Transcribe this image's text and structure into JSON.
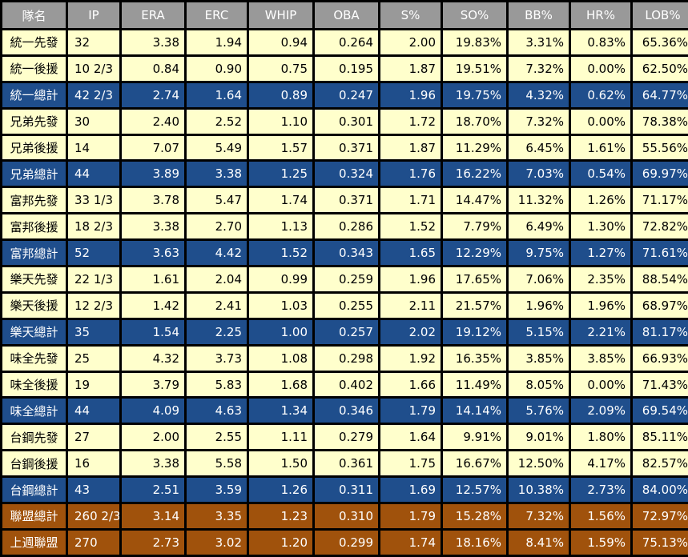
{
  "headers": [
    "隊名",
    "IP",
    "ERA",
    "ERC",
    "WHIP",
    "OBA",
    "S%",
    "SO%",
    "BB%",
    "HR%",
    "LOB%"
  ],
  "rows": [
    {
      "type": "plain",
      "cells": [
        "統一先發",
        "32",
        "3.38",
        "1.94",
        "0.94",
        "0.264",
        "2.00",
        "19.83%",
        "3.31%",
        "0.83%",
        "65.36%"
      ]
    },
    {
      "type": "plain",
      "cells": [
        "統一後援",
        "10 2/3",
        "0.84",
        "0.90",
        "0.75",
        "0.195",
        "1.87",
        "19.51%",
        "7.32%",
        "0.00%",
        "62.50%"
      ]
    },
    {
      "type": "total",
      "cells": [
        "統一總計",
        "42 2/3",
        "2.74",
        "1.64",
        "0.89",
        "0.247",
        "1.96",
        "19.75%",
        "4.32%",
        "0.62%",
        "64.77%"
      ]
    },
    {
      "type": "plain",
      "cells": [
        "兄弟先發",
        "30",
        "2.40",
        "2.52",
        "1.10",
        "0.301",
        "1.72",
        "18.70%",
        "7.32%",
        "0.00%",
        "78.38%"
      ]
    },
    {
      "type": "plain",
      "cells": [
        "兄弟後援",
        "14",
        "7.07",
        "5.49",
        "1.57",
        "0.371",
        "1.87",
        "11.29%",
        "6.45%",
        "1.61%",
        "55.56%"
      ]
    },
    {
      "type": "total",
      "cells": [
        "兄弟總計",
        "44",
        "3.89",
        "3.38",
        "1.25",
        "0.324",
        "1.76",
        "16.22%",
        "7.03%",
        "0.54%",
        "69.97%"
      ]
    },
    {
      "type": "plain",
      "cells": [
        "富邦先發",
        "33 1/3",
        "3.78",
        "5.47",
        "1.74",
        "0.371",
        "1.71",
        "14.47%",
        "11.32%",
        "1.26%",
        "71.17%"
      ]
    },
    {
      "type": "plain",
      "cells": [
        "富邦後援",
        "18 2/3",
        "3.38",
        "2.70",
        "1.13",
        "0.286",
        "1.52",
        "7.79%",
        "6.49%",
        "1.30%",
        "72.82%"
      ]
    },
    {
      "type": "total",
      "cells": [
        "富邦總計",
        "52",
        "3.63",
        "4.42",
        "1.52",
        "0.343",
        "1.65",
        "12.29%",
        "9.75%",
        "1.27%",
        "71.61%"
      ]
    },
    {
      "type": "plain",
      "cells": [
        "樂天先發",
        "22 1/3",
        "1.61",
        "2.04",
        "0.99",
        "0.259",
        "1.96",
        "17.65%",
        "7.06%",
        "2.35%",
        "88.54%"
      ]
    },
    {
      "type": "plain",
      "cells": [
        "樂天後援",
        "12 2/3",
        "1.42",
        "2.41",
        "1.03",
        "0.255",
        "2.11",
        "21.57%",
        "1.96%",
        "1.96%",
        "68.97%"
      ]
    },
    {
      "type": "total",
      "cells": [
        "樂天總計",
        "35",
        "1.54",
        "2.25",
        "1.00",
        "0.257",
        "2.02",
        "19.12%",
        "5.15%",
        "2.21%",
        "81.17%"
      ]
    },
    {
      "type": "plain",
      "cells": [
        "味全先發",
        "25",
        "4.32",
        "3.73",
        "1.08",
        "0.298",
        "1.92",
        "16.35%",
        "3.85%",
        "3.85%",
        "66.93%"
      ]
    },
    {
      "type": "plain",
      "cells": [
        "味全後援",
        "19",
        "3.79",
        "5.83",
        "1.68",
        "0.402",
        "1.66",
        "11.49%",
        "8.05%",
        "0.00%",
        "71.43%"
      ]
    },
    {
      "type": "total",
      "cells": [
        "味全總計",
        "44",
        "4.09",
        "4.63",
        "1.34",
        "0.346",
        "1.79",
        "14.14%",
        "5.76%",
        "2.09%",
        "69.54%"
      ]
    },
    {
      "type": "plain",
      "cells": [
        "台鋼先發",
        "27",
        "2.00",
        "2.55",
        "1.11",
        "0.279",
        "1.64",
        "9.91%",
        "9.01%",
        "1.80%",
        "85.11%"
      ]
    },
    {
      "type": "plain",
      "cells": [
        "台鋼後援",
        "16",
        "3.38",
        "5.58",
        "1.50",
        "0.361",
        "1.75",
        "16.67%",
        "12.50%",
        "4.17%",
        "82.57%"
      ]
    },
    {
      "type": "total",
      "cells": [
        "台鋼總計",
        "43",
        "2.51",
        "3.59",
        "1.26",
        "0.311",
        "1.69",
        "12.57%",
        "10.38%",
        "2.73%",
        "84.00%"
      ]
    },
    {
      "type": "league",
      "cells": [
        "聯盟總計",
        "260 2/3",
        "3.14",
        "3.35",
        "1.23",
        "0.310",
        "1.79",
        "15.28%",
        "7.32%",
        "1.56%",
        "72.97%"
      ]
    },
    {
      "type": "league",
      "cells": [
        "上週聯盟",
        "270",
        "2.73",
        "3.02",
        "1.20",
        "0.299",
        "1.74",
        "18.16%",
        "8.41%",
        "1.59%",
        "75.13%"
      ]
    }
  ],
  "colors": {
    "header_bg": "#999999",
    "row_bg": "#ffffcc",
    "total_bg": "#1f4e8c",
    "league_bg": "#a0520c",
    "border": "#000000"
  }
}
